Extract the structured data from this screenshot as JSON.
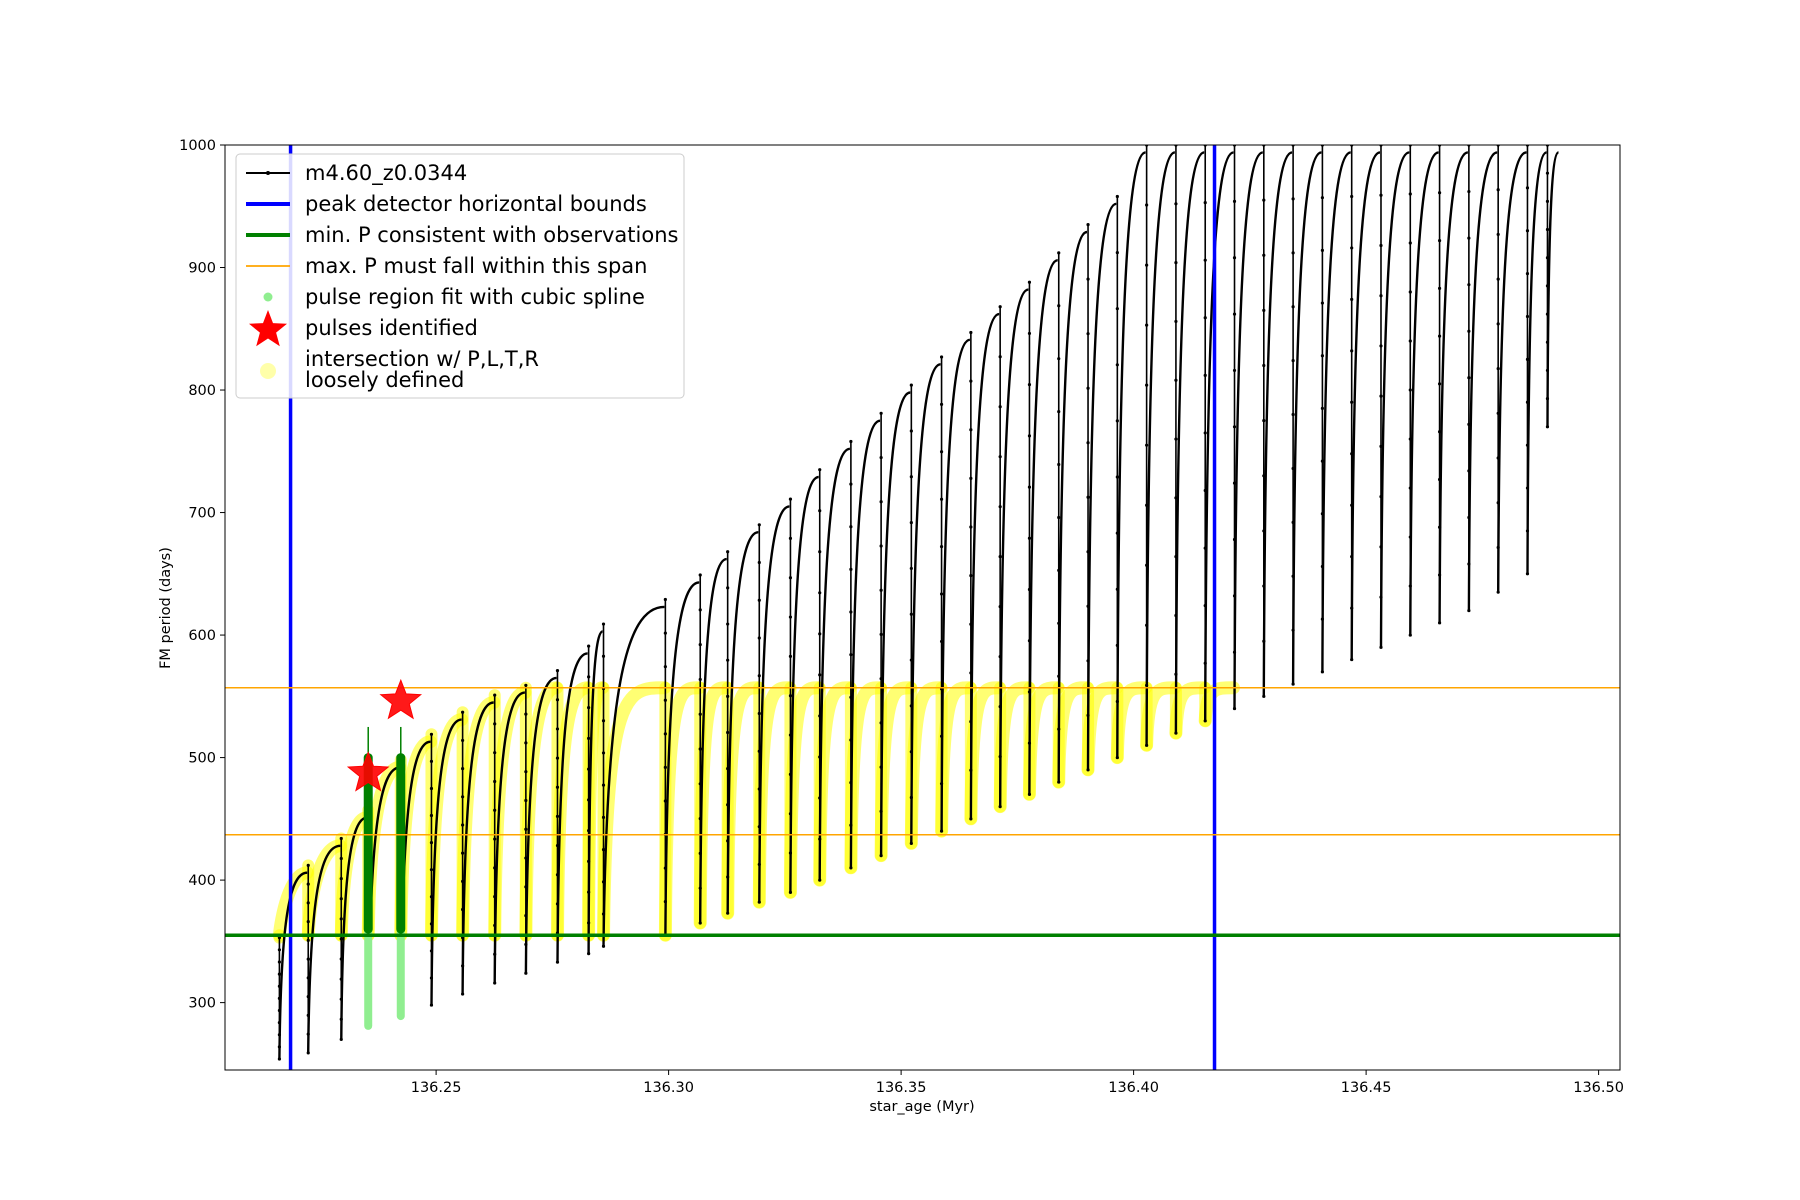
{
  "chart_data": {
    "type": "line",
    "xlabel": "star_age (Myr)",
    "ylabel": "FM period (days)",
    "xlim": [
      136.2046,
      136.5046
    ],
    "ylim": [
      245,
      1000
    ],
    "x_ticks": [
      136.25,
      136.3,
      136.35,
      136.4,
      136.45,
      136.5
    ],
    "x_tick_labels": [
      "136.25",
      "136.30",
      "136.35",
      "136.40",
      "136.45",
      "136.50"
    ],
    "y_ticks": [
      300,
      400,
      500,
      600,
      700,
      800,
      900,
      1000
    ],
    "y_tick_labels": [
      "300",
      "400",
      "500",
      "600",
      "700",
      "800",
      "900",
      "1000"
    ],
    "grid": false,
    "legend_position": "upper-left",
    "legend": [
      {
        "label": "m4.60_z0.0344",
        "kind": "line-marker",
        "color": "#000000"
      },
      {
        "label": "peak detector horizontal bounds",
        "kind": "line",
        "color": "#0000ff"
      },
      {
        "label": "min. P consistent with observations",
        "kind": "line",
        "color": "#008000"
      },
      {
        "label": "max. P must fall within this span",
        "kind": "line-thin",
        "color": "#ffa500"
      },
      {
        "label": "pulse region fit with cubic spline",
        "kind": "dot",
        "color": "#90ee90"
      },
      {
        "label": "pulses identified",
        "kind": "star",
        "color": "#ff0000"
      },
      {
        "label": "intersection w/ P,L,T,R\nloosely defined",
        "kind": "dot",
        "color": "#ffffaa"
      }
    ],
    "vertical_lines": {
      "x": [
        136.2187,
        136.4174
      ],
      "color": "#0000ff"
    },
    "horizontal_lines": {
      "min_P": {
        "y": 355,
        "color": "#008000"
      },
      "max_P_span": {
        "y": [
          437,
          557
        ],
        "color": "#ffa500"
      }
    },
    "model_series": {
      "name": "m4.60_z0.0344",
      "color": "#000000",
      "pulses": [
        {
          "x": 136.2163,
          "min": 254,
          "peak": 353
        },
        {
          "x": 136.2225,
          "min": 259,
          "peak": 412
        },
        {
          "x": 136.2296,
          "min": 270,
          "peak": 434
        },
        {
          "x": 136.2354,
          "min": 281,
          "peak": 457
        },
        {
          "x": 136.2424,
          "min": 289,
          "peak": 498
        },
        {
          "x": 136.249,
          "min": 298,
          "peak": 519
        },
        {
          "x": 136.2557,
          "min": 307,
          "peak": 537
        },
        {
          "x": 136.2626,
          "min": 316,
          "peak": 551
        },
        {
          "x": 136.2693,
          "min": 324,
          "peak": 559
        },
        {
          "x": 136.2761,
          "min": 333,
          "peak": 571
        },
        {
          "x": 136.2828,
          "min": 340,
          "peak": 591
        },
        {
          "x": 136.286,
          "min": 346,
          "peak": 609
        },
        {
          "x": 136.2993,
          "min": 355,
          "peak": 629
        },
        {
          "x": 136.3068,
          "min": 365,
          "peak": 649
        },
        {
          "x": 136.3127,
          "min": 373,
          "peak": 668
        },
        {
          "x": 136.3195,
          "min": 382,
          "peak": 690
        },
        {
          "x": 136.3262,
          "min": 390,
          "peak": 711
        },
        {
          "x": 136.3325,
          "min": 400,
          "peak": 735
        },
        {
          "x": 136.3392,
          "min": 410,
          "peak": 758
        },
        {
          "x": 136.3457,
          "min": 420,
          "peak": 781
        },
        {
          "x": 136.3522,
          "min": 430,
          "peak": 804
        },
        {
          "x": 136.3587,
          "min": 440,
          "peak": 827
        },
        {
          "x": 136.365,
          "min": 450,
          "peak": 847
        },
        {
          "x": 136.3713,
          "min": 460,
          "peak": 868
        },
        {
          "x": 136.3776,
          "min": 470,
          "peak": 888
        },
        {
          "x": 136.3839,
          "min": 480,
          "peak": 912
        },
        {
          "x": 136.3902,
          "min": 490,
          "peak": 935
        },
        {
          "x": 136.3965,
          "min": 500,
          "peak": 958
        },
        {
          "x": 136.4028,
          "min": 510,
          "peak": 1000
        },
        {
          "x": 136.4091,
          "min": 520,
          "peak": 1000
        },
        {
          "x": 136.4154,
          "min": 530,
          "peak": 1000
        },
        {
          "x": 136.4217,
          "min": 540,
          "peak": 1000
        },
        {
          "x": 136.428,
          "min": 550,
          "peak": 1000
        },
        {
          "x": 136.4343,
          "min": 560,
          "peak": 1000
        },
        {
          "x": 136.4406,
          "min": 570,
          "peak": 1000
        },
        {
          "x": 136.4469,
          "min": 580,
          "peak": 1000
        },
        {
          "x": 136.4532,
          "min": 590,
          "peak": 1000
        },
        {
          "x": 136.4595,
          "min": 600,
          "peak": 1000
        },
        {
          "x": 136.4658,
          "min": 610,
          "peak": 1000
        },
        {
          "x": 136.4721,
          "min": 620,
          "peak": 1000
        },
        {
          "x": 136.4784,
          "min": 635,
          "peak": 1000
        },
        {
          "x": 136.4847,
          "min": 650,
          "peak": 1000
        },
        {
          "x": 136.489,
          "min": 770,
          "peak": 1000
        }
      ]
    },
    "spline_pulses": [
      {
        "x": 136.2354,
        "y_min": 281,
        "y_max": 500
      },
      {
        "x": 136.2424,
        "y_min": 289,
        "y_max": 500
      }
    ],
    "pulses_identified": [
      {
        "x": 136.2354,
        "y": 487
      },
      {
        "x": 136.2424,
        "y": 546
      }
    ],
    "intersection_points_note": "yellow shading where model P lies between min. P and upper max. P"
  }
}
